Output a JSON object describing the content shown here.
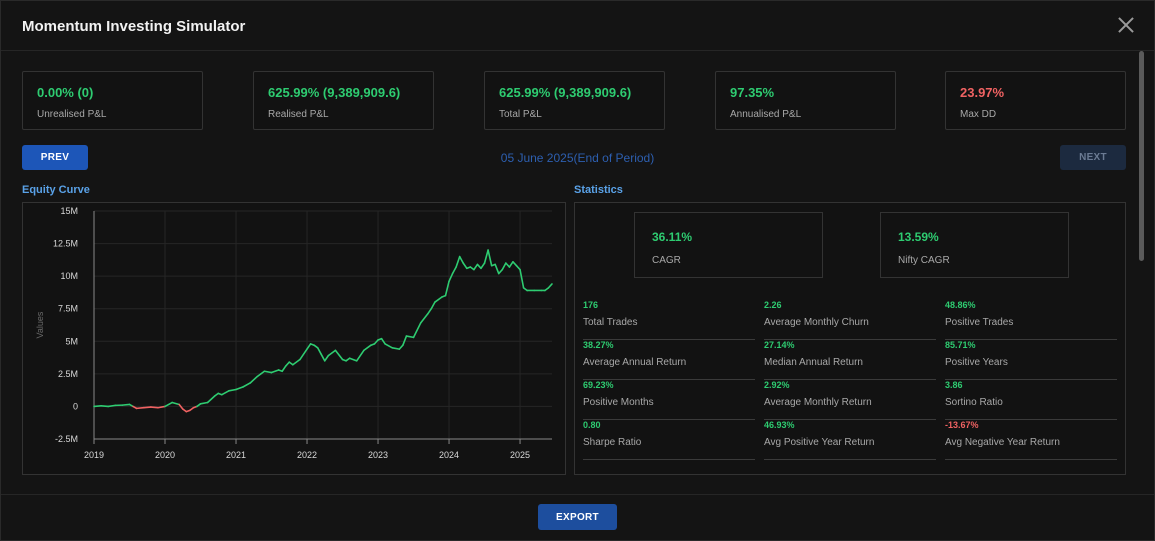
{
  "window": {
    "title": "Momentum Investing Simulator"
  },
  "kpis": [
    {
      "value": "0.00% (0)",
      "label": "Unrealised P&L",
      "color": "#2ecc71"
    },
    {
      "value": "625.99% (9,389,909.6)",
      "label": "Realised P&L",
      "color": "#2ecc71"
    },
    {
      "value": "625.99% (9,389,909.6)",
      "label": "Total P&L",
      "color": "#2ecc71"
    },
    {
      "value": "97.35%",
      "label": "Annualised P&L",
      "color": "#2ecc71"
    },
    {
      "value": "23.97%",
      "label": "Max DD",
      "color": "#f06262"
    }
  ],
  "nav": {
    "prev_label": "PREV",
    "next_label": "NEXT",
    "period": "05 June 2025(End of Period)"
  },
  "equity": {
    "title": "Equity Curve"
  },
  "chart_data": {
    "type": "line",
    "ylabel": "Values",
    "xlabel": "",
    "yticks": [
      "15M",
      "12.5M",
      "10M",
      "7.5M",
      "5M",
      "2.5M",
      "0",
      "-2.5M"
    ],
    "xticks": [
      "2019",
      "2020",
      "2021",
      "2022",
      "2023",
      "2024",
      "2025"
    ],
    "ylim": [
      -2500000,
      15000000
    ],
    "xlim": [
      2019.0,
      2025.45
    ],
    "positive_color": "#2ecc71",
    "negative_color": "#f06262",
    "series": [
      {
        "x": [
          2019.0,
          2019.1,
          2019.2,
          2019.3,
          2019.4,
          2019.5,
          2019.55,
          2019.6,
          2019.7,
          2019.8,
          2019.9,
          2020.0,
          2020.1,
          2020.2,
          2020.25,
          2020.3,
          2020.35,
          2020.4,
          2020.45,
          2020.5,
          2020.6,
          2020.7,
          2020.75,
          2020.8,
          2020.9,
          2021.0,
          2021.1,
          2021.2,
          2021.3,
          2021.35,
          2021.4,
          2021.5,
          2021.6,
          2021.65,
          2021.7,
          2021.75,
          2021.8,
          2021.9,
          2022.0,
          2022.05,
          2022.1,
          2022.15,
          2022.2,
          2022.25,
          2022.3,
          2022.4,
          2022.5,
          2022.55,
          2022.6,
          2022.7,
          2022.8,
          2022.9,
          2022.95,
          2023.0,
          2023.05,
          2023.1,
          2023.2,
          2023.3,
          2023.35,
          2023.4,
          2023.5,
          2023.6,
          2023.7,
          2023.75,
          2023.8,
          2023.9,
          2023.95,
          2024.0,
          2024.05,
          2024.1,
          2024.15,
          2024.2,
          2024.25,
          2024.3,
          2024.35,
          2024.4,
          2024.45,
          2024.5,
          2024.55,
          2024.6,
          2024.65,
          2024.7,
          2024.75,
          2024.8,
          2024.85,
          2024.9,
          2024.95,
          2025.0,
          2025.05,
          2025.1,
          2025.2,
          2025.3,
          2025.35,
          2025.4,
          2025.45
        ],
        "y": [
          0,
          50000,
          0,
          80000,
          100000,
          150000,
          0,
          -150000,
          -100000,
          -50000,
          -100000,
          0,
          300000,
          150000,
          -200000,
          -400000,
          -300000,
          -100000,
          0,
          200000,
          300000,
          800000,
          1000000,
          900000,
          1200000,
          1300000,
          1500000,
          1800000,
          2300000,
          2500000,
          2700000,
          2600000,
          2800000,
          2700000,
          3100000,
          3400000,
          3200000,
          3600000,
          4400000,
          4800000,
          4700000,
          4500000,
          4000000,
          3500000,
          3900000,
          4300000,
          3600000,
          3500000,
          3700000,
          3500000,
          4300000,
          4700000,
          4800000,
          5100000,
          5200000,
          4800000,
          4500000,
          4400000,
          4700000,
          5400000,
          5300000,
          6400000,
          7100000,
          7500000,
          8000000,
          8400000,
          8500000,
          9600000,
          10200000,
          10700000,
          11500000,
          11000000,
          10600000,
          10700000,
          10500000,
          10900000,
          10600000,
          11000000,
          12000000,
          10800000,
          10900000,
          10200000,
          10500000,
          11000000,
          10700000,
          11100000,
          10800000,
          10500000,
          9100000,
          8900000,
          8900000,
          8900000,
          8900000,
          9100000,
          9400000
        ]
      }
    ]
  },
  "statistics": {
    "title": "Statistics",
    "cagr": {
      "value": "36.11%",
      "label": "CAGR"
    },
    "nifty_cagr": {
      "value": "13.59%",
      "label": "Nifty CAGR"
    },
    "items": [
      {
        "value": "176",
        "label": "Total Trades",
        "color": "#2ecc71"
      },
      {
        "value": "2.26",
        "label": "Average Monthly Churn",
        "color": "#2ecc71"
      },
      {
        "value": "48.86%",
        "label": "Positive Trades",
        "color": "#2ecc71"
      },
      {
        "value": "38.27%",
        "label": "Average Annual Return",
        "color": "#2ecc71"
      },
      {
        "value": "27.14%",
        "label": "Median Annual Return",
        "color": "#2ecc71"
      },
      {
        "value": "85.71%",
        "label": "Positive Years",
        "color": "#2ecc71"
      },
      {
        "value": "69.23%",
        "label": "Positive Months",
        "color": "#2ecc71"
      },
      {
        "value": "2.92%",
        "label": "Average Monthly Return",
        "color": "#2ecc71"
      },
      {
        "value": "3.86",
        "label": "Sortino Ratio",
        "color": "#2ecc71"
      },
      {
        "value": "0.80",
        "label": "Sharpe Ratio",
        "color": "#2ecc71"
      },
      {
        "value": "46.93%",
        "label": "Avg Positive Year Return",
        "color": "#2ecc71"
      },
      {
        "value": "-13.67%",
        "label": "Avg Negative Year Return",
        "color": "#f06262"
      }
    ]
  },
  "footer": {
    "export_label": "EXPORT"
  }
}
